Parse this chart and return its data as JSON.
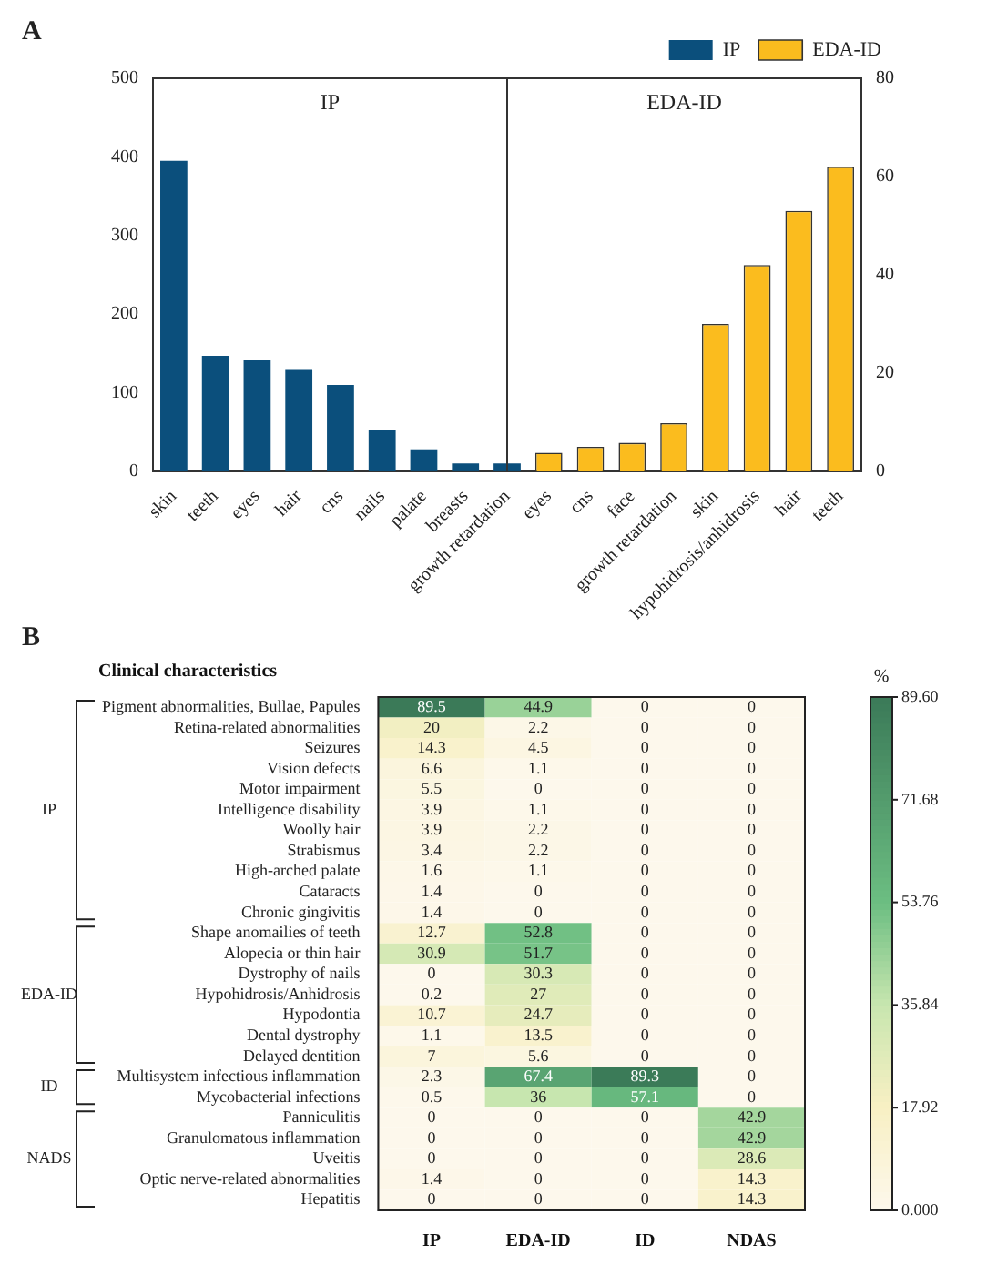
{
  "chart_data": [
    {
      "type": "bar",
      "categories": [
        "skin",
        "teeth",
        "eyes",
        "hair",
        "cns",
        "nails",
        "palate",
        "breasts",
        "growth retardation",
        "eyes",
        "cns",
        "face",
        "growth retardation",
        "skin",
        "hypohidrosis/anhidrosis",
        "hair",
        "teeth"
      ],
      "series": [
        {
          "name": "IP",
          "color": "#0b4f7c",
          "values": [
            395,
            147,
            141,
            129,
            110,
            53,
            28,
            10,
            10,
            null,
            null,
            null,
            null,
            null,
            null,
            null,
            null
          ]
        },
        {
          "name": "EDA-ID",
          "color": "#fbbc1e",
          "axis": "y2",
          "values": [
            null,
            null,
            null,
            null,
            null,
            null,
            null,
            null,
            null,
            3.8,
            5,
            5.8,
            9.8,
            30,
            42,
            53,
            62
          ]
        }
      ],
      "ylim": [
        0,
        500
      ],
      "yticks": [
        0,
        100,
        200,
        300,
        400,
        500
      ],
      "y2lim": [
        0,
        80
      ],
      "y2ticks": [
        0,
        20,
        40,
        60,
        80
      ],
      "legend": "top right",
      "annotations": [
        "A",
        "IP",
        "EDA-ID"
      ]
    },
    {
      "type": "heatmap",
      "title": "Clinical characteristics",
      "clabel": "%",
      "categories": [
        "IP",
        "EDA-ID",
        "ID",
        "NDAS"
      ],
      "y_categories": [
        "Pigment abnormalities, Bullae, Papules",
        "Retina-related abnormalities",
        "Seizures",
        "Vision defects",
        "Motor impairment",
        "Intelligence disability",
        "Woolly hair",
        "Strabismus",
        "High-arched palate",
        "Cataracts",
        "Chronic gingivitis",
        "Shape anomailies of teeth",
        "Alopecia or thin hair",
        "Dystrophy of nails",
        "Hypohidrosis/Anhidrosis",
        "Hypodontia",
        "Dental dystrophy",
        "Delayed dentition",
        "Multisystem infectious inflammation",
        "Mycobacterial infections",
        "Panniculitis",
        "Granulomatous inflammation",
        "Uveitis",
        "Optic nerve-related abnormalities",
        "Hepatitis"
      ],
      "cells": [
        [
          89.5,
          44.9,
          0,
          0
        ],
        [
          20,
          2.2,
          0,
          0
        ],
        [
          14.3,
          4.5,
          0,
          0
        ],
        [
          6.6,
          1.1,
          0,
          0
        ],
        [
          5.5,
          0,
          0,
          0
        ],
        [
          3.9,
          1.1,
          0,
          0
        ],
        [
          3.9,
          2.2,
          0,
          0
        ],
        [
          3.4,
          2.2,
          0,
          0
        ],
        [
          1.6,
          1.1,
          0,
          0
        ],
        [
          1.4,
          0,
          0,
          0
        ],
        [
          1.4,
          0,
          0,
          0
        ],
        [
          12.7,
          52.8,
          0,
          0
        ],
        [
          30.9,
          51.7,
          0,
          0
        ],
        [
          0,
          30.3,
          0,
          0
        ],
        [
          0.2,
          27,
          0,
          0
        ],
        [
          10.7,
          24.7,
          0,
          0
        ],
        [
          1.1,
          13.5,
          0,
          0
        ],
        [
          7,
          5.6,
          0,
          0
        ],
        [
          2.3,
          67.4,
          89.3,
          0
        ],
        [
          0.5,
          36,
          57.1,
          0
        ],
        [
          0,
          0,
          0,
          42.9
        ],
        [
          0,
          0,
          0,
          42.9
        ],
        [
          0,
          0,
          0,
          28.6
        ],
        [
          1.4,
          0,
          0,
          14.3
        ],
        [
          0,
          0,
          0,
          14.3
        ]
      ],
      "clim": [
        0,
        89.6
      ],
      "cticks": [
        {
          "value": 0,
          "label": "0.000"
        },
        {
          "value": 17.92,
          "label": "17.92"
        },
        {
          "value": 35.84,
          "label": "35.84"
        },
        {
          "value": 53.76,
          "label": "53.76"
        },
        {
          "value": 71.68,
          "label": "71.68"
        },
        {
          "value": 89.6,
          "label": "89.60"
        }
      ],
      "data_labels": true,
      "annotations": [
        "B",
        "IP",
        "EDA-ID",
        "ID",
        "NADS"
      ]
    }
  ]
}
